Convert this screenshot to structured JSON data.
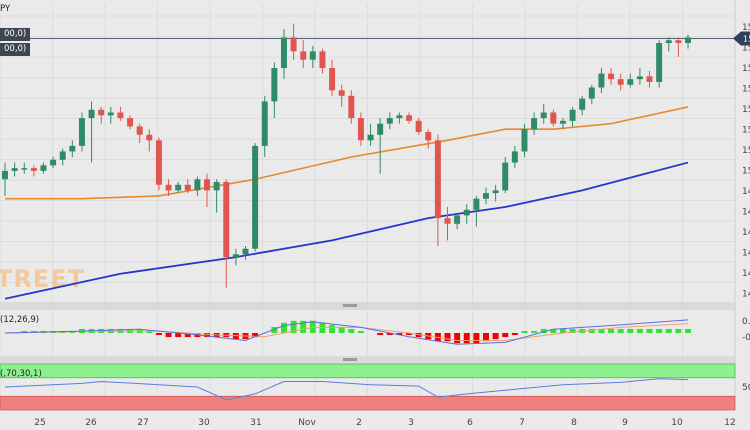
{
  "header": {
    "symbol_fragment": "PY"
  },
  "overlays": {
    "ma_tag_1": "00,0)",
    "ma_tag_2": "00,0)"
  },
  "watermark": {
    "text": "TREET"
  },
  "right_axis": {
    "price_label_fragment": "15",
    "ticks": [
      "15",
      "15",
      "15",
      "15",
      "15",
      "15",
      "15",
      "15",
      "14",
      "14",
      "14",
      "14",
      "14",
      "14"
    ]
  },
  "macd": {
    "label": "(12,26,9)",
    "ticks": [
      "0.",
      "-0"
    ]
  },
  "rsi": {
    "label": "(,70,30,1)",
    "ticks": [
      "50"
    ]
  },
  "x_axis": {
    "labels": [
      "25",
      "26",
      "27",
      "30",
      "31",
      "Nov",
      "2",
      "3",
      "6",
      "7",
      "8",
      "9",
      "10",
      "12"
    ]
  },
  "colors": {
    "up": "#2e8b66",
    "down": "#e0564e",
    "sma_orange": "#e58a2e",
    "sma_blue": "#2536c8",
    "hist_up": "#33e233",
    "hist_down": "#f50000",
    "macd_line": "#5a6fe0",
    "signal_line": "#f0a070",
    "rsi_line": "#5a7ee0",
    "rsi_over": "#8ef08e",
    "rsi_under": "#f08080"
  },
  "chart_data": [
    {
      "type": "candlestick",
      "title": "",
      "ylim": [
        0,
        100
      ],
      "candles": [
        {
          "o": 42,
          "h": 48,
          "l": 36,
          "c": 45
        },
        {
          "o": 45,
          "h": 48,
          "l": 43,
          "c": 46
        },
        {
          "o": 46,
          "h": 48,
          "l": 44,
          "c": 46
        },
        {
          "o": 46,
          "h": 47,
          "l": 43,
          "c": 45
        },
        {
          "o": 45,
          "h": 48,
          "l": 44,
          "c": 47
        },
        {
          "o": 47,
          "h": 50,
          "l": 46,
          "c": 49
        },
        {
          "o": 49,
          "h": 53,
          "l": 47,
          "c": 52
        },
        {
          "o": 52,
          "h": 56,
          "l": 50,
          "c": 54
        },
        {
          "o": 54,
          "h": 66,
          "l": 52,
          "c": 64
        },
        {
          "o": 64,
          "h": 70,
          "l": 48,
          "c": 67
        },
        {
          "o": 67,
          "h": 68,
          "l": 62,
          "c": 65
        },
        {
          "o": 65,
          "h": 68,
          "l": 62,
          "c": 66
        },
        {
          "o": 66,
          "h": 68,
          "l": 63,
          "c": 64
        },
        {
          "o": 64,
          "h": 65,
          "l": 60,
          "c": 61
        },
        {
          "o": 61,
          "h": 62,
          "l": 55,
          "c": 58
        },
        {
          "o": 58,
          "h": 60,
          "l": 52,
          "c": 56
        },
        {
          "o": 56,
          "h": 57,
          "l": 38,
          "c": 40
        },
        {
          "o": 40,
          "h": 42,
          "l": 36,
          "c": 38
        },
        {
          "o": 38,
          "h": 41,
          "l": 37,
          "c": 40
        },
        {
          "o": 40,
          "h": 42,
          "l": 37,
          "c": 38
        },
        {
          "o": 38,
          "h": 43,
          "l": 36,
          "c": 42
        },
        {
          "o": 42,
          "h": 44,
          "l": 32,
          "c": 38
        },
        {
          "o": 38,
          "h": 42,
          "l": 30,
          "c": 41
        },
        {
          "o": 41,
          "h": 42,
          "l": 3,
          "c": 14
        },
        {
          "o": 14,
          "h": 17,
          "l": 11,
          "c": 15
        },
        {
          "o": 15,
          "h": 18,
          "l": 13,
          "c": 17
        },
        {
          "o": 17,
          "h": 55,
          "l": 16,
          "c": 54
        },
        {
          "o": 54,
          "h": 72,
          "l": 50,
          "c": 70
        },
        {
          "o": 70,
          "h": 84,
          "l": 64,
          "c": 82
        },
        {
          "o": 82,
          "h": 96,
          "l": 78,
          "c": 93
        },
        {
          "o": 93,
          "h": 98,
          "l": 85,
          "c": 88
        },
        {
          "o": 88,
          "h": 92,
          "l": 82,
          "c": 85
        },
        {
          "o": 85,
          "h": 90,
          "l": 82,
          "c": 88
        },
        {
          "o": 88,
          "h": 89,
          "l": 80,
          "c": 82
        },
        {
          "o": 82,
          "h": 85,
          "l": 72,
          "c": 74
        },
        {
          "o": 74,
          "h": 76,
          "l": 68,
          "c": 72
        },
        {
          "o": 72,
          "h": 74,
          "l": 62,
          "c": 64
        },
        {
          "o": 64,
          "h": 66,
          "l": 54,
          "c": 56
        },
        {
          "o": 56,
          "h": 62,
          "l": 54,
          "c": 58
        },
        {
          "o": 58,
          "h": 64,
          "l": 44,
          "c": 62
        },
        {
          "o": 62,
          "h": 66,
          "l": 60,
          "c": 64
        },
        {
          "o": 64,
          "h": 66,
          "l": 62,
          "c": 65
        },
        {
          "o": 65,
          "h": 66,
          "l": 62,
          "c": 63
        },
        {
          "o": 63,
          "h": 64,
          "l": 58,
          "c": 59
        },
        {
          "o": 59,
          "h": 60,
          "l": 53,
          "c": 56
        },
        {
          "o": 56,
          "h": 58,
          "l": 18,
          "c": 28
        },
        {
          "o": 28,
          "h": 32,
          "l": 20,
          "c": 26
        },
        {
          "o": 26,
          "h": 30,
          "l": 24,
          "c": 29
        },
        {
          "o": 29,
          "h": 33,
          "l": 26,
          "c": 31
        },
        {
          "o": 31,
          "h": 36,
          "l": 25,
          "c": 35
        },
        {
          "o": 35,
          "h": 39,
          "l": 33,
          "c": 37
        },
        {
          "o": 37,
          "h": 40,
          "l": 34,
          "c": 38
        },
        {
          "o": 38,
          "h": 50,
          "l": 37,
          "c": 48
        },
        {
          "o": 48,
          "h": 54,
          "l": 46,
          "c": 52
        },
        {
          "o": 52,
          "h": 62,
          "l": 50,
          "c": 60
        },
        {
          "o": 60,
          "h": 66,
          "l": 58,
          "c": 64
        },
        {
          "o": 64,
          "h": 69,
          "l": 62,
          "c": 66
        },
        {
          "o": 66,
          "h": 67,
          "l": 61,
          "c": 62
        },
        {
          "o": 62,
          "h": 64,
          "l": 60,
          "c": 63
        },
        {
          "o": 63,
          "h": 68,
          "l": 61,
          "c": 67
        },
        {
          "o": 67,
          "h": 72,
          "l": 65,
          "c": 71
        },
        {
          "o": 71,
          "h": 76,
          "l": 69,
          "c": 75
        },
        {
          "o": 75,
          "h": 82,
          "l": 73,
          "c": 80
        },
        {
          "o": 80,
          "h": 82,
          "l": 76,
          "c": 78
        },
        {
          "o": 78,
          "h": 80,
          "l": 74,
          "c": 76
        },
        {
          "o": 76,
          "h": 80,
          "l": 75,
          "c": 78
        },
        {
          "o": 78,
          "h": 82,
          "l": 76,
          "c": 79
        },
        {
          "o": 79,
          "h": 81,
          "l": 75,
          "c": 77
        },
        {
          "o": 77,
          "h": 92,
          "l": 75,
          "c": 91
        },
        {
          "o": 91,
          "h": 93,
          "l": 88,
          "c": 92
        },
        {
          "o": 92,
          "h": 93,
          "l": 86,
          "c": 91
        },
        {
          "o": 91,
          "h": 94,
          "l": 89,
          "c": 93
        }
      ],
      "sma_orange": [
        [
          0,
          35
        ],
        [
          8,
          35
        ],
        [
          16,
          36
        ],
        [
          26,
          42
        ],
        [
          36,
          50
        ],
        [
          46,
          56
        ],
        [
          52,
          60
        ],
        [
          57,
          60
        ],
        [
          63,
          62
        ],
        [
          71,
          68
        ]
      ],
      "sma_blue": [
        [
          0,
          -1
        ],
        [
          12,
          8
        ],
        [
          24,
          14
        ],
        [
          34,
          20
        ],
        [
          44,
          28
        ],
        [
          52,
          32
        ],
        [
          60,
          38
        ],
        [
          71,
          48
        ]
      ]
    },
    {
      "type": "bar+line",
      "title": "",
      "histogram": [
        0,
        0,
        1,
        1,
        1,
        1,
        1,
        1,
        2,
        2,
        2,
        2,
        2,
        2,
        2,
        1,
        -1,
        -2,
        -2,
        -2,
        -2,
        -2,
        -2,
        -2,
        -3,
        -3,
        -2,
        0,
        3,
        5,
        6,
        6,
        6,
        5,
        4,
        3,
        2,
        1,
        0,
        -1,
        -1,
        -1,
        -1,
        -2,
        -3,
        -4,
        -4,
        -5,
        -5,
        -5,
        -4,
        -3,
        -2,
        -1,
        1,
        1,
        2,
        2,
        2,
        2,
        2,
        2,
        2,
        2,
        2,
        2,
        2,
        2,
        2,
        2,
        2,
        2
      ],
      "macd_line": [
        [
          0,
          0
        ],
        [
          8,
          1
        ],
        [
          14,
          2
        ],
        [
          20,
          -1
        ],
        [
          25,
          -4
        ],
        [
          29,
          4
        ],
        [
          32,
          6
        ],
        [
          37,
          3
        ],
        [
          42,
          -2
        ],
        [
          47,
          -6
        ],
        [
          52,
          -5
        ],
        [
          57,
          2
        ],
        [
          63,
          4
        ],
        [
          71,
          7
        ]
      ],
      "signal_line": [
        [
          0,
          0
        ],
        [
          10,
          1
        ],
        [
          16,
          1
        ],
        [
          22,
          -1
        ],
        [
          27,
          -2
        ],
        [
          32,
          3
        ],
        [
          37,
          3
        ],
        [
          42,
          0
        ],
        [
          47,
          -4
        ],
        [
          52,
          -4
        ],
        [
          58,
          0
        ],
        [
          64,
          3
        ],
        [
          71,
          5
        ]
      ]
    },
    {
      "type": "line",
      "title": "",
      "ylim": [
        0,
        100
      ],
      "rsi": [
        [
          0,
          50
        ],
        [
          8,
          58
        ],
        [
          10,
          62
        ],
        [
          16,
          55
        ],
        [
          20,
          50
        ],
        [
          23,
          22
        ],
        [
          26,
          35
        ],
        [
          29,
          62
        ],
        [
          33,
          62
        ],
        [
          38,
          55
        ],
        [
          43,
          52
        ],
        [
          45,
          28
        ],
        [
          48,
          35
        ],
        [
          53,
          45
        ],
        [
          58,
          55
        ],
        [
          64,
          60
        ],
        [
          68,
          68
        ],
        [
          71,
          66
        ]
      ],
      "overbought": 70,
      "oversold": 30
    }
  ]
}
